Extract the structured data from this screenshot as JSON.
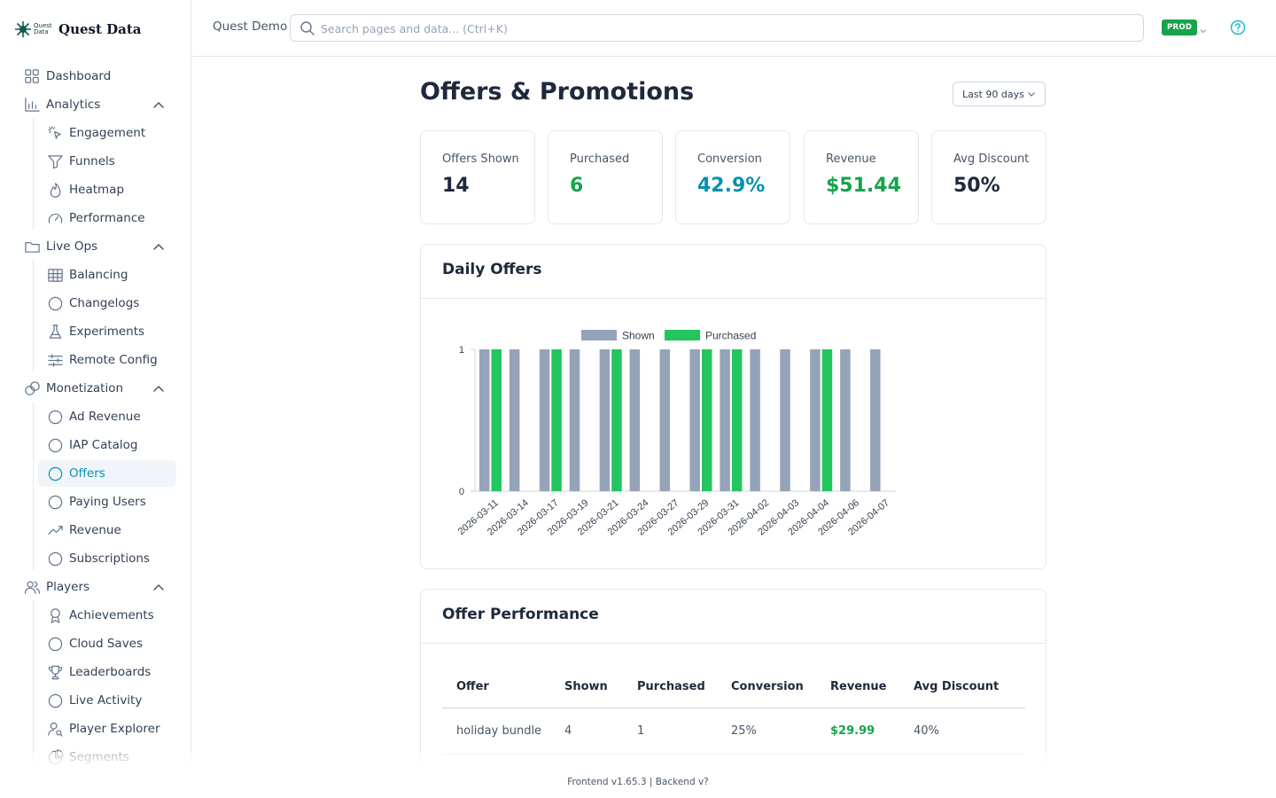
{
  "brand": {
    "mark_text": "Quest Data",
    "name": "Quest Data"
  },
  "header": {
    "project": "Quest Demo",
    "search_placeholder": "Search pages and data... (Ctrl+K)",
    "env_badge": "PROD"
  },
  "sidebar": {
    "items": [
      {
        "label": "Dashboard",
        "icon": "grid-icon",
        "level": "top"
      },
      {
        "label": "Analytics",
        "icon": "bar-chart-icon",
        "level": "top",
        "expanded": true
      },
      {
        "label": "Engagement",
        "icon": "cursor-click-icon",
        "level": "sub"
      },
      {
        "label": "Funnels",
        "icon": "filter-icon",
        "level": "sub"
      },
      {
        "label": "Heatmap",
        "icon": "flame-icon",
        "level": "sub"
      },
      {
        "label": "Performance",
        "icon": "gauge-icon",
        "level": "sub"
      },
      {
        "label": "Live Ops",
        "icon": "folder-icon",
        "level": "top",
        "expanded": true
      },
      {
        "label": "Balancing",
        "icon": "table-icon",
        "level": "sub"
      },
      {
        "label": "Changelogs",
        "icon": "circle-icon",
        "level": "sub"
      },
      {
        "label": "Experiments",
        "icon": "flask-icon",
        "level": "sub"
      },
      {
        "label": "Remote Config",
        "icon": "sliders-icon",
        "level": "sub"
      },
      {
        "label": "Monetization",
        "icon": "coins-icon",
        "level": "top",
        "expanded": true
      },
      {
        "label": "Ad Revenue",
        "icon": "circle-icon",
        "level": "sub"
      },
      {
        "label": "IAP Catalog",
        "icon": "circle-icon",
        "level": "sub"
      },
      {
        "label": "Offers",
        "icon": "circle-icon",
        "level": "sub",
        "active": true
      },
      {
        "label": "Paying Users",
        "icon": "circle-icon",
        "level": "sub"
      },
      {
        "label": "Revenue",
        "icon": "trend-up-icon",
        "level": "sub"
      },
      {
        "label": "Subscriptions",
        "icon": "circle-icon",
        "level": "sub"
      },
      {
        "label": "Players",
        "icon": "users-icon",
        "level": "top",
        "expanded": true
      },
      {
        "label": "Achievements",
        "icon": "award-icon",
        "level": "sub"
      },
      {
        "label": "Cloud Saves",
        "icon": "circle-icon",
        "level": "sub"
      },
      {
        "label": "Leaderboards",
        "icon": "trophy-icon",
        "level": "sub"
      },
      {
        "label": "Live Activity",
        "icon": "circle-icon",
        "level": "sub"
      },
      {
        "label": "Player Explorer",
        "icon": "user-search-icon",
        "level": "sub"
      },
      {
        "label": "Segments",
        "icon": "pie-icon",
        "level": "sub"
      }
    ]
  },
  "page": {
    "title": "Offers & Promotions",
    "range": "Last 90 days"
  },
  "kpis": [
    {
      "label": "Offers Shown",
      "value": "14",
      "color": "#1e293b"
    },
    {
      "label": "Purchased",
      "value": "6",
      "color": "#16a34a"
    },
    {
      "label": "Conversion",
      "value": "42.9%",
      "color": "#0891b2"
    },
    {
      "label": "Revenue",
      "value": "$51.44",
      "color": "#16a34a"
    },
    {
      "label": "Avg Discount",
      "value": "50%",
      "color": "#1e293b"
    }
  ],
  "daily_offers": {
    "title": "Daily Offers"
  },
  "chart_data": {
    "type": "bar",
    "categories": [
      "2026-03-11",
      "2026-03-14",
      "2026-03-17",
      "2026-03-19",
      "2026-03-21",
      "2026-03-24",
      "2026-03-27",
      "2026-03-29",
      "2026-03-31",
      "2026-04-02",
      "2026-04-03",
      "2026-04-04",
      "2026-04-06",
      "2026-04-07"
    ],
    "series": [
      {
        "name": "Shown",
        "color": "#94a3b8",
        "values": [
          1,
          1,
          1,
          1,
          1,
          1,
          1,
          1,
          1,
          1,
          1,
          1,
          1,
          1
        ]
      },
      {
        "name": "Purchased",
        "color": "#22c55e",
        "values": [
          1,
          0,
          1,
          0,
          1,
          0,
          0,
          1,
          1,
          0,
          0,
          1,
          0,
          0
        ]
      }
    ],
    "ylim": [
      0,
      1
    ],
    "yticks": [
      0,
      1
    ],
    "legend": "top",
    "grid": false
  },
  "performance": {
    "title": "Offer Performance",
    "columns": [
      "Offer",
      "Shown",
      "Purchased",
      "Conversion",
      "Revenue",
      "Avg Discount"
    ],
    "rows": [
      {
        "offer": "holiday bundle",
        "shown": "4",
        "purchased": "1",
        "conversion": "25%",
        "revenue": "$29.99",
        "discount": "40%"
      }
    ]
  },
  "footer": "Frontend v1.65.3 | Backend v?"
}
